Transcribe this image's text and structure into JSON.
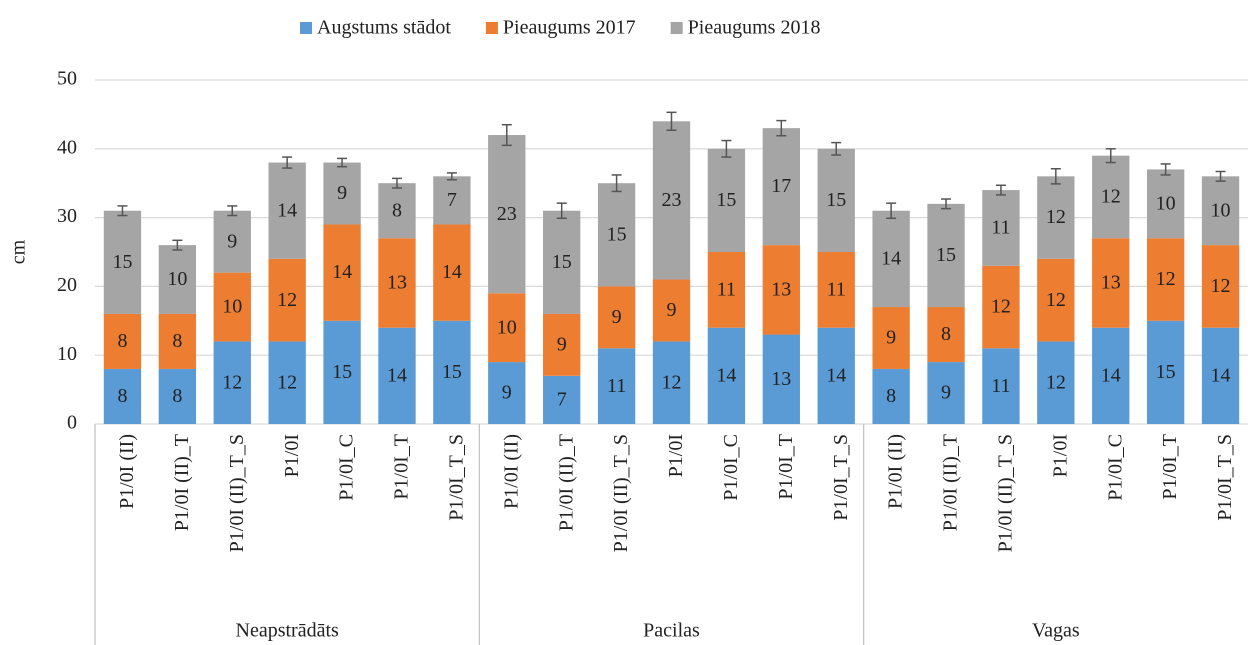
{
  "chart_data": {
    "type": "stacked_bar",
    "y_label": "cm",
    "groups": [
      {
        "name": "Neapstrādāts",
        "categories": [
          "P1/0I (II)",
          "P1/0I (II)_T",
          "P1/0I (II)_T_S",
          "P1/0I",
          "P1/0I_C",
          "P1/0I_T",
          "P1/0I_T_S"
        ]
      },
      {
        "name": "Pacilas",
        "categories": [
          "P1/0I (II)",
          "P1/0I (II)_T",
          "P1/0I (II)_T_S",
          "P1/0I",
          "P1/0I_C",
          "P1/0I_T",
          "P1/0I_T_S"
        ]
      },
      {
        "name": "Vagas",
        "categories": [
          "P1/0I (II)",
          "P1/0I (II)_T",
          "P1/0I (II)_T_S",
          "P1/0I",
          "P1/0I_C",
          "P1/0I_T",
          "P1/0I_T_S"
        ]
      }
    ],
    "series": [
      {
        "name": "Augstums stādot",
        "color": "#5b9bd5",
        "values": [
          8,
          8,
          12,
          12,
          15,
          14,
          15,
          9,
          7,
          11,
          12,
          14,
          13,
          14,
          8,
          9,
          11,
          12,
          14,
          15,
          14
        ]
      },
      {
        "name": "Pieaugums 2017",
        "color": "#ed7d31",
        "values": [
          8,
          8,
          10,
          12,
          14,
          13,
          14,
          10,
          9,
          9,
          9,
          11,
          13,
          11,
          9,
          8,
          12,
          12,
          13,
          12,
          12
        ]
      },
      {
        "name": "Pieaugums 2018",
        "color": "#a5a5a5",
        "values": [
          15,
          10,
          9,
          14,
          9,
          8,
          7,
          23,
          15,
          15,
          23,
          15,
          17,
          15,
          14,
          15,
          11,
          12,
          12,
          10,
          10
        ],
        "errors": [
          0.7,
          0.7,
          0.7,
          0.8,
          0.6,
          0.7,
          0.5,
          1.5,
          1.1,
          1.2,
          1.3,
          1.2,
          1.1,
          0.9,
          1.1,
          0.7,
          0.7,
          1.1,
          1.0,
          0.8,
          0.7
        ]
      }
    ],
    "ylim": [
      0,
      50
    ],
    "yticks": [
      0,
      10,
      20,
      30,
      40,
      50
    ],
    "grid": true,
    "legend": "top"
  }
}
